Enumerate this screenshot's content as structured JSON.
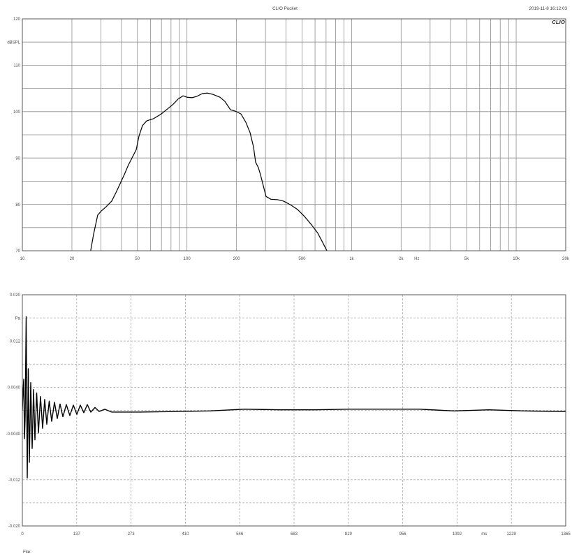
{
  "header": {
    "title": "CLIO Pocket",
    "timestamp": "2019-11-8 16:12:03",
    "logo": "CLIO"
  },
  "footer": {
    "file_label": "File:"
  },
  "chart_data": [
    {
      "type": "line",
      "x_scale": "log",
      "xlim": [
        10,
        20000
      ],
      "ylim": [
        70,
        120
      ],
      "xlabel": "Hz",
      "ylabel": "dBSPL",
      "grid": true,
      "grid_dashed": false,
      "y_grid_step": 5,
      "line_color": "#000000",
      "x_ticks": [
        {
          "value": 10,
          "label": "10"
        },
        {
          "value": 20,
          "label": "20"
        },
        {
          "value": 50,
          "label": "50"
        },
        {
          "value": 100,
          "label": "100"
        },
        {
          "value": 200,
          "label": "200"
        },
        {
          "value": 500,
          "label": "500"
        },
        {
          "value": 1000,
          "label": "1k"
        },
        {
          "value": 2000,
          "label": "2k"
        },
        {
          "value": 5000,
          "label": "5k"
        },
        {
          "value": 10000,
          "label": "10k"
        },
        {
          "value": 20000,
          "label": "20k"
        }
      ],
      "y_ticks": [
        {
          "value": 120,
          "label": "120"
        },
        {
          "value": 110,
          "label": "110"
        },
        {
          "value": 100,
          "label": "100"
        },
        {
          "value": 90,
          "label": "90"
        },
        {
          "value": 80,
          "label": "80"
        },
        {
          "value": 70,
          "label": "70"
        }
      ],
      "series": [
        {
          "x": [
            26.0,
            27.1,
            28.7,
            30.2,
            32.3,
            34.9,
            37.0,
            39.3,
            41.6,
            44.1,
            46.8,
            49.2,
            51.1,
            53.7,
            56.9,
            62.8,
            69.2,
            76.3,
            82.5,
            88.3,
            94.6,
            100.3,
            107.4,
            115.0,
            124.3,
            133.2,
            144.0,
            158.8,
            170.0,
            183.8,
            196.8,
            212.8,
            227.9,
            241.6,
            253.7,
            261.3,
            271.7,
            279.8,
            290.9,
            302.5,
            324.0,
            357.1,
            386.2,
            425.9,
            469.6,
            517.6,
            570.8,
            623.3,
            667.4,
            707.7
          ],
          "y": [
            70.0,
            73.6,
            77.7,
            78.6,
            79.5,
            80.7,
            82.5,
            84.5,
            86.4,
            88.5,
            90.3,
            91.8,
            94.7,
            97.0,
            98.0,
            98.5,
            99.4,
            100.6,
            101.6,
            102.7,
            103.4,
            103.1,
            103.0,
            103.3,
            103.9,
            104.0,
            103.7,
            103.1,
            102.2,
            100.4,
            100.1,
            99.5,
            97.7,
            95.5,
            92.4,
            89.1,
            87.9,
            86.4,
            84.0,
            81.7,
            81.1,
            81.0,
            80.7,
            79.9,
            78.9,
            77.4,
            75.6,
            73.8,
            71.8,
            70.0
          ]
        }
      ]
    },
    {
      "type": "line",
      "x_scale": "linear",
      "xlim": [
        0,
        1365
      ],
      "ylim": [
        -0.02,
        0.02
      ],
      "xlabel": "ms",
      "ylabel": "Pa",
      "grid": true,
      "grid_dashed": true,
      "x_grid_step": 136.5,
      "y_grid_step": 0.004,
      "line_color": "#000000",
      "x_ticks": [
        {
          "value": 0,
          "label": "0"
        },
        {
          "value": 136.5,
          "label": "137"
        },
        {
          "value": 273,
          "label": "273"
        },
        {
          "value": 409.5,
          "label": "410"
        },
        {
          "value": 546,
          "label": "546"
        },
        {
          "value": 682.5,
          "label": "683"
        },
        {
          "value": 819,
          "label": "819"
        },
        {
          "value": 955.5,
          "label": "956"
        },
        {
          "value": 1092,
          "label": "1092"
        },
        {
          "value": 1228.5,
          "label": "1229"
        },
        {
          "value": 1365,
          "label": "1365"
        }
      ],
      "y_ticks": [
        {
          "value": 0.02,
          "label": "0.020"
        },
        {
          "value": 0.012,
          "label": "0.012"
        },
        {
          "value": 0.004,
          "label": "0.0040"
        },
        {
          "value": -0.004,
          "label": "-0.0040"
        },
        {
          "value": -0.012,
          "label": "-0.012"
        },
        {
          "value": -0.02,
          "label": "-0.020"
        }
      ],
      "series": [
        {
          "x": [
            0.0,
            1.8,
            3.5,
            5.3,
            7.0,
            9.6,
            12.3,
            14.9,
            17.5,
            21.1,
            24.6,
            28.1,
            31.6,
            36.0,
            40.4,
            45.6,
            50.9,
            56.1,
            61.4,
            67.5,
            73.7,
            80.7,
            87.7,
            94.7,
            101.8,
            110.5,
            119.3,
            128.1,
            136.9,
            145.6,
            154.4,
            163.2,
            171.9,
            182.5,
            193.0,
            207.0,
            224.6,
            250.9,
            294.8,
            382.5,
            470.2,
            557.9,
            645.7,
            733.4,
            821.1,
            908.8,
            996.6,
            1084.3,
            1172.0,
            1259.7,
            1365.0
          ],
          "y": [
            0.0,
            0.0033,
            0.0054,
            -0.0049,
            -0.0013,
            0.0162,
            -0.0117,
            0.0072,
            -0.009,
            0.0048,
            -0.0066,
            0.0036,
            -0.0051,
            0.003,
            -0.0039,
            0.0024,
            -0.0031,
            0.0019,
            -0.0024,
            0.0016,
            -0.0019,
            0.0014,
            -0.0014,
            0.0011,
            -0.0011,
            0.001,
            -0.0009,
            0.0009,
            -0.0007,
            0.0009,
            -0.0004,
            0.001,
            -0.0003,
            0.0005,
            -0.0002,
            0.0002,
            -0.0003,
            -0.0003,
            -0.0003,
            -0.0002,
            -0.0001,
            0.0002,
            0.0001,
            0.0001,
            0.0002,
            0.0002,
            0.0002,
            -0.0001,
            0.0001,
            -0.0001,
            -0.0002
          ]
        }
      ]
    }
  ]
}
